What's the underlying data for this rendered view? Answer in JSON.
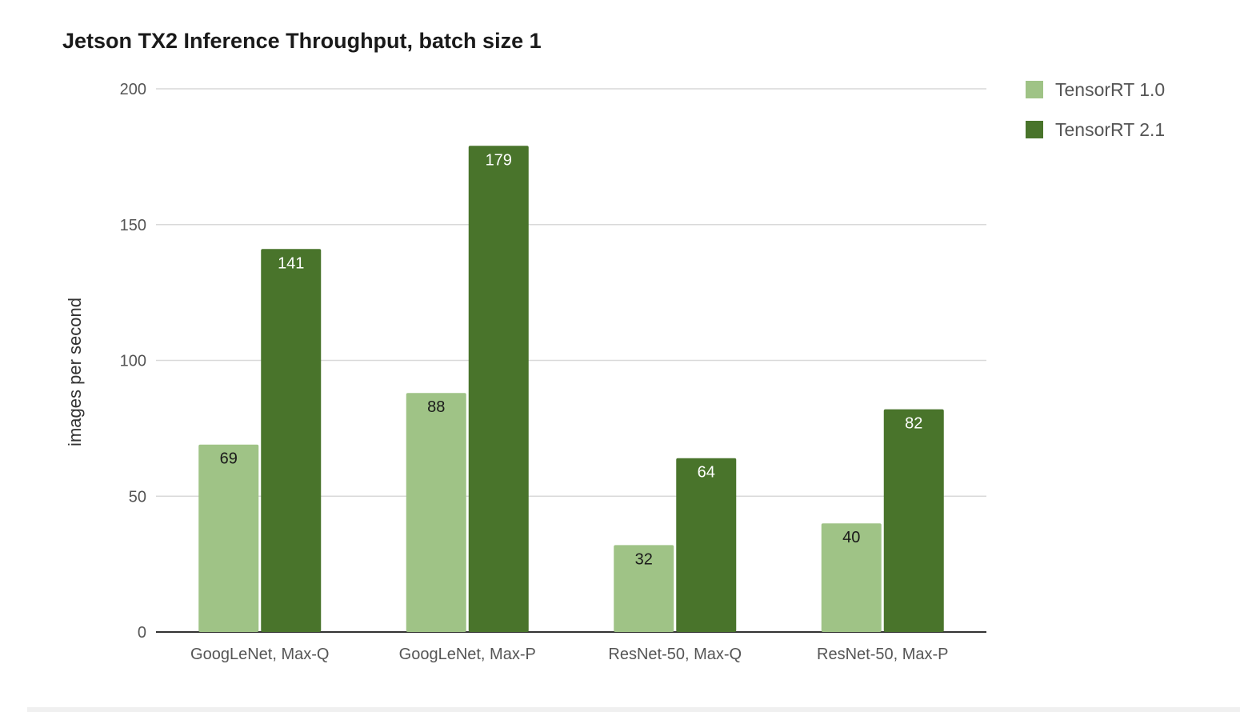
{
  "chart_data": {
    "type": "bar",
    "title": "Jetson TX2 Inference Throughput, batch size 1",
    "xlabel": "",
    "ylabel": "images per second",
    "ylim": [
      0,
      200
    ],
    "yticks": [
      0,
      50,
      100,
      150,
      200
    ],
    "categories": [
      "GoogLeNet, Max-Q",
      "GoogLeNet, Max-P",
      "ResNet-50, Max-Q",
      "ResNet-50, Max-P"
    ],
    "series": [
      {
        "name": "TensorRT 1.0",
        "color": "#9fc386",
        "label_color": "#1a1a1a",
        "values": [
          69,
          88,
          32,
          40
        ]
      },
      {
        "name": "TensorRT 2.1",
        "color": "#49742b",
        "label_color": "#ffffff",
        "values": [
          141,
          179,
          64,
          82
        ]
      }
    ],
    "grid": true,
    "legend_position": "top-right",
    "data_labels": true,
    "colors": {
      "gridline": "#d9d9d9",
      "baseline": "#333333"
    }
  }
}
